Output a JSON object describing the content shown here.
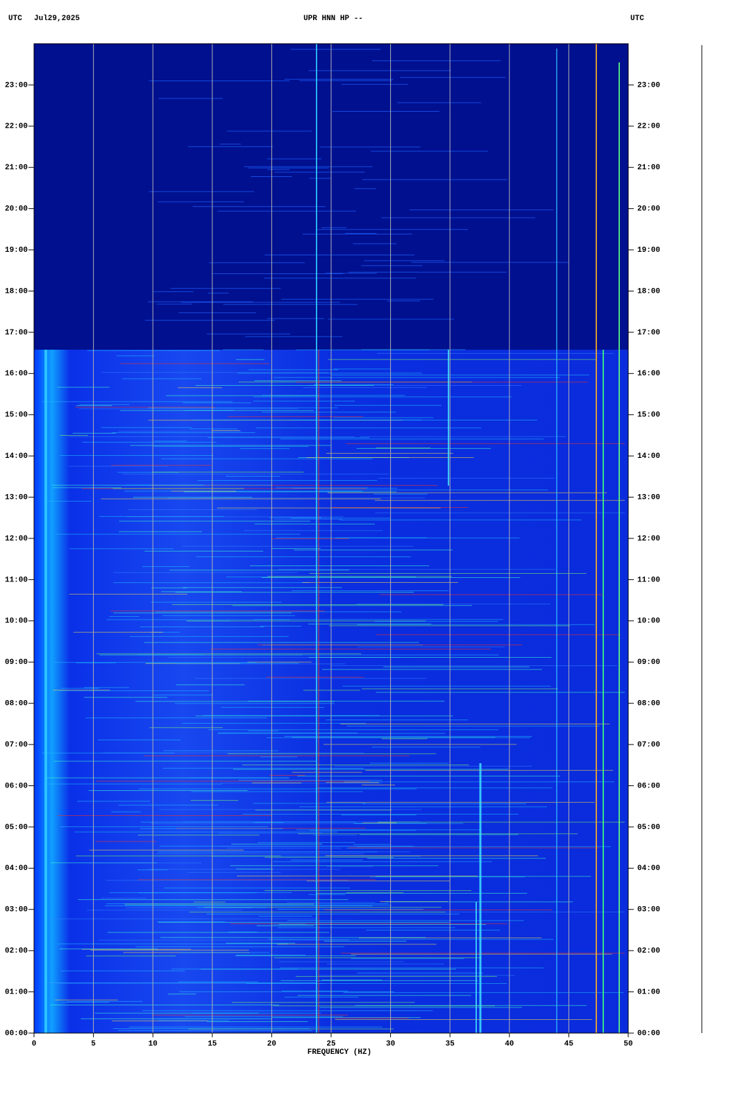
{
  "chart_data": {
    "type": "spectrogram",
    "title": "UPR HNN HP --",
    "date": "Jul29,2025",
    "left_label": "UTC",
    "right_label": "UTC",
    "xlabel": "FREQUENCY (HZ)",
    "xlim": [
      0,
      50
    ],
    "xticks": [
      0,
      5,
      10,
      15,
      20,
      25,
      30,
      35,
      40,
      45,
      50
    ],
    "ylim": [
      0,
      24
    ],
    "yticks": [
      {
        "value": 0,
        "label": "00:00"
      },
      {
        "value": 1,
        "label": "01:00"
      },
      {
        "value": 2,
        "label": "02:00"
      },
      {
        "value": 3,
        "label": "03:00"
      },
      {
        "value": 4,
        "label": "04:00"
      },
      {
        "value": 5,
        "label": "05:00"
      },
      {
        "value": 6,
        "label": "06:00"
      },
      {
        "value": 7,
        "label": "07:00"
      },
      {
        "value": 8,
        "label": "08:00"
      },
      {
        "value": 9,
        "label": "09:00"
      },
      {
        "value": 10,
        "label": "10:00"
      },
      {
        "value": 11,
        "label": "11:00"
      },
      {
        "value": 12,
        "label": "12:00"
      },
      {
        "value": 13,
        "label": "13:00"
      },
      {
        "value": 14,
        "label": "14:00"
      },
      {
        "value": 15,
        "label": "15:00"
      },
      {
        "value": 16,
        "label": "16:00"
      },
      {
        "value": 17,
        "label": "17:00"
      },
      {
        "value": 18,
        "label": "18:00"
      },
      {
        "value": 19,
        "label": "19:00"
      },
      {
        "value": 20,
        "label": "20:00"
      },
      {
        "value": 21,
        "label": "21:00"
      },
      {
        "value": 22,
        "label": "22:00"
      },
      {
        "value": 23,
        "label": "23:00"
      }
    ],
    "grid": true
  }
}
